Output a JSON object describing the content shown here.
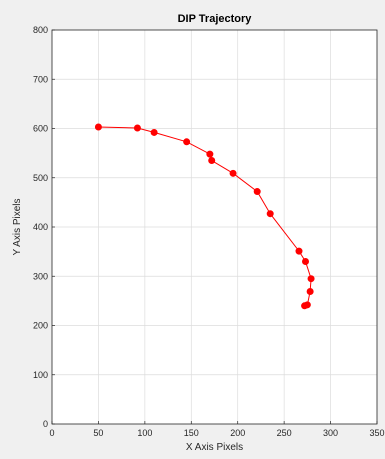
{
  "chart_data": {
    "type": "line",
    "title": "DIP Trajectory",
    "xlabel": "X Axis Pixels",
    "ylabel": "Y Axis Pixels",
    "xlim": [
      0,
      350
    ],
    "ylim": [
      0,
      800
    ],
    "xticks": [
      0,
      50,
      100,
      150,
      200,
      250,
      300,
      350
    ],
    "yticks": [
      0,
      100,
      200,
      300,
      400,
      500,
      600,
      700,
      800
    ],
    "grid": true,
    "box": true,
    "series": [
      {
        "color": "#ff0000",
        "marker": "circle-filled",
        "x": [
          50,
          92,
          110,
          145,
          170,
          172,
          195,
          221,
          235,
          266,
          273,
          279,
          278,
          275,
          272
        ],
        "y": [
          603,
          601,
          592,
          573,
          548,
          535,
          509,
          472,
          427,
          351,
          330,
          295,
          269,
          242,
          240
        ]
      }
    ]
  },
  "colors": {
    "background": "#f0f0f0",
    "plot_area": "#ffffff",
    "grid": "#dddddd",
    "axis": "#262626"
  }
}
